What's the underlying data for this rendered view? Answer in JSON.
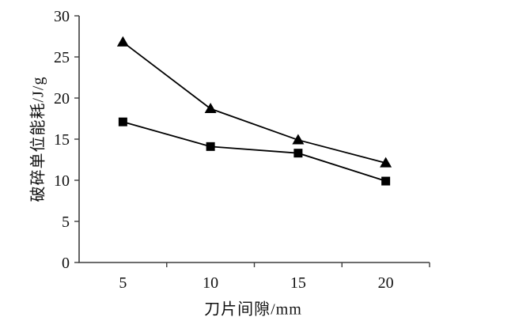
{
  "figure": {
    "background": "#ffffff",
    "axis_color": "#3d3d3d",
    "text_color": "#111111",
    "series_color": "#000000"
  },
  "chart_data": {
    "type": "line",
    "categories": [
      "5",
      "10",
      "15",
      "20"
    ],
    "series": [
      {
        "name": "triangle-series",
        "marker": "triangle",
        "values": [
          26.8,
          18.7,
          14.9,
          12.1
        ]
      },
      {
        "name": "square-series",
        "marker": "square",
        "values": [
          17.1,
          14.1,
          13.3,
          9.9
        ]
      }
    ],
    "title": "",
    "xlabel": "刀片间隙/mm",
    "ylabel": "破碎单位能耗/J/g",
    "yticks": [
      0,
      5,
      10,
      15,
      20,
      25,
      30
    ],
    "ylim": [
      0,
      30
    ],
    "legend": "none",
    "grid": false
  }
}
